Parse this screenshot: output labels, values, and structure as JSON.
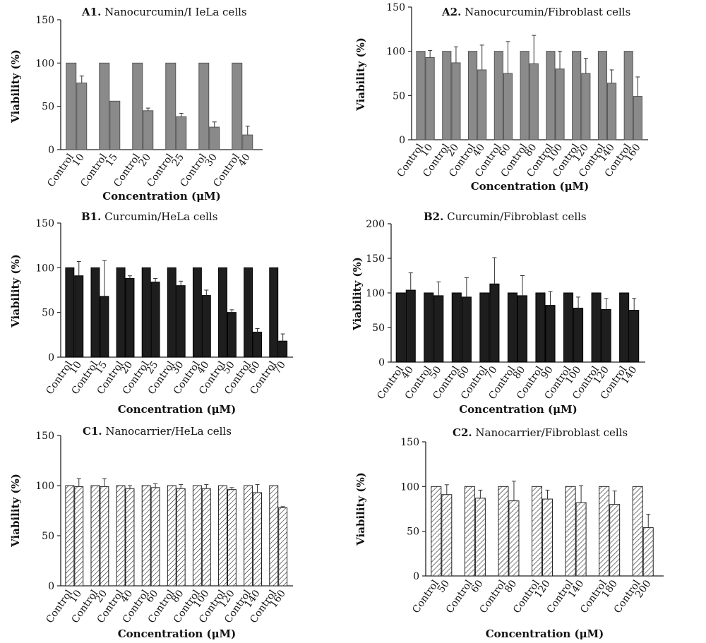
{
  "colors": {
    "gray": "#8a8a8a",
    "black": "#1e1e1e",
    "hatch": "#ffffff",
    "axis": "#222222"
  },
  "chart_data": [
    {
      "id": "A1",
      "type": "bar",
      "style": "gray",
      "title_prefix": "A1.",
      "title_rest": " Nanocurcumin/I IeLa cells",
      "xlabel": "Concentration (μM)",
      "ylabel": "Viability (%)",
      "ylim": [
        0,
        150
      ],
      "yticks": [
        0,
        50,
        100,
        150
      ],
      "groups": [
        {
          "dose": "10",
          "control": 100,
          "control_err": 0,
          "treated": 77,
          "treated_err": 8
        },
        {
          "dose": "15",
          "control": 100,
          "control_err": 0,
          "treated": 56,
          "treated_err": 0
        },
        {
          "dose": "20",
          "control": 100,
          "control_err": 0,
          "treated": 45,
          "treated_err": 3
        },
        {
          "dose": "25",
          "control": 100,
          "control_err": 0,
          "treated": 38,
          "treated_err": 4
        },
        {
          "dose": "30",
          "control": 100,
          "control_err": 0,
          "treated": 26,
          "treated_err": 6
        },
        {
          "dose": "40",
          "control": 100,
          "control_err": 0,
          "treated": 17,
          "treated_err": 10
        }
      ]
    },
    {
      "id": "A2",
      "type": "bar",
      "style": "gray",
      "title_prefix": "A2.",
      "title_rest": " Nanocurcumin/Fibroblast cells",
      "xlabel": "Concentration (μM)",
      "ylabel": "Viability (%)",
      "ylim": [
        0,
        150
      ],
      "yticks": [
        0,
        50,
        100,
        150
      ],
      "groups": [
        {
          "dose": "10",
          "control": 100,
          "control_err": 0,
          "treated": 93,
          "treated_err": 8
        },
        {
          "dose": "20",
          "control": 100,
          "control_err": 0,
          "treated": 87,
          "treated_err": 18
        },
        {
          "dose": "40",
          "control": 100,
          "control_err": 0,
          "treated": 79,
          "treated_err": 28
        },
        {
          "dose": "60",
          "control": 100,
          "control_err": 0,
          "treated": 75,
          "treated_err": 36
        },
        {
          "dose": "80",
          "control": 100,
          "control_err": 0,
          "treated": 86,
          "treated_err": 32
        },
        {
          "dose": "100",
          "control": 100,
          "control_err": 0,
          "treated": 80,
          "treated_err": 20
        },
        {
          "dose": "120",
          "control": 100,
          "control_err": 0,
          "treated": 75,
          "treated_err": 17
        },
        {
          "dose": "140",
          "control": 100,
          "control_err": 0,
          "treated": 64,
          "treated_err": 15
        },
        {
          "dose": "160",
          "control": 100,
          "control_err": 0,
          "treated": 49,
          "treated_err": 22
        }
      ]
    },
    {
      "id": "B1",
      "type": "bar",
      "style": "black",
      "title_prefix": "B1.",
      "title_rest": " Curcumin/HeLa cells",
      "xlabel": "Concentration (μM)",
      "ylabel": "Viability (%)",
      "ylim": [
        0,
        150
      ],
      "yticks": [
        0,
        50,
        100,
        150
      ],
      "groups": [
        {
          "dose": "10",
          "control": 100,
          "control_err": 0,
          "treated": 91,
          "treated_err": 16
        },
        {
          "dose": "15",
          "control": 100,
          "control_err": 0,
          "treated": 68,
          "treated_err": 40
        },
        {
          "dose": "20",
          "control": 100,
          "control_err": 0,
          "treated": 88,
          "treated_err": 3
        },
        {
          "dose": "25",
          "control": 100,
          "control_err": 0,
          "treated": 84,
          "treated_err": 4
        },
        {
          "dose": "30",
          "control": 100,
          "control_err": 0,
          "treated": 80,
          "treated_err": 5
        },
        {
          "dose": "40",
          "control": 100,
          "control_err": 0,
          "treated": 69,
          "treated_err": 6
        },
        {
          "dose": "50",
          "control": 100,
          "control_err": 0,
          "treated": 50,
          "treated_err": 3
        },
        {
          "dose": "60",
          "control": 100,
          "control_err": 0,
          "treated": 28,
          "treated_err": 4
        },
        {
          "dose": "70",
          "control": 100,
          "control_err": 0,
          "treated": 18,
          "treated_err": 8
        }
      ]
    },
    {
      "id": "B2",
      "type": "bar",
      "style": "black",
      "title_prefix": "B2.",
      "title_rest": " Curcumin/Fibroblast cells",
      "xlabel": "Concentration (μM)",
      "ylabel": "Viability (%)",
      "ylim": [
        0,
        200
      ],
      "yticks": [
        0,
        50,
        100,
        150,
        200
      ],
      "groups": [
        {
          "dose": "40",
          "control": 100,
          "control_err": 0,
          "treated": 104,
          "treated_err": 25
        },
        {
          "dose": "50",
          "control": 100,
          "control_err": 0,
          "treated": 96,
          "treated_err": 20
        },
        {
          "dose": "60",
          "control": 100,
          "control_err": 0,
          "treated": 94,
          "treated_err": 28
        },
        {
          "dose": "70",
          "control": 100,
          "control_err": 0,
          "treated": 113,
          "treated_err": 38
        },
        {
          "dose": "80",
          "control": 100,
          "control_err": 0,
          "treated": 96,
          "treated_err": 29
        },
        {
          "dose": "90",
          "control": 100,
          "control_err": 0,
          "treated": 82,
          "treated_err": 20
        },
        {
          "dose": "100",
          "control": 100,
          "control_err": 0,
          "treated": 78,
          "treated_err": 16
        },
        {
          "dose": "120",
          "control": 100,
          "control_err": 0,
          "treated": 76,
          "treated_err": 16
        },
        {
          "dose": "140",
          "control": 100,
          "control_err": 0,
          "treated": 75,
          "treated_err": 17
        }
      ]
    },
    {
      "id": "C1",
      "type": "bar",
      "style": "hatch",
      "title_prefix": "C1.",
      "title_rest": " Nanocarrier/HeLa cells",
      "xlabel": "Concentration (μM)",
      "ylabel": "Viability (%)",
      "ylim": [
        0,
        150
      ],
      "yticks": [
        0,
        50,
        100,
        150
      ],
      "groups": [
        {
          "dose": "10",
          "control": 100,
          "control_err": 0,
          "treated": 99,
          "treated_err": 8
        },
        {
          "dose": "20",
          "control": 100,
          "control_err": 0,
          "treated": 99,
          "treated_err": 8
        },
        {
          "dose": "40",
          "control": 100,
          "control_err": 0,
          "treated": 97,
          "treated_err": 3
        },
        {
          "dose": "60",
          "control": 100,
          "control_err": 0,
          "treated": 98,
          "treated_err": 4
        },
        {
          "dose": "80",
          "control": 100,
          "control_err": 0,
          "treated": 97,
          "treated_err": 4
        },
        {
          "dose": "100",
          "control": 100,
          "control_err": 0,
          "treated": 97,
          "treated_err": 4
        },
        {
          "dose": "120",
          "control": 100,
          "control_err": 0,
          "treated": 96,
          "treated_err": 2
        },
        {
          "dose": "140",
          "control": 100,
          "control_err": 0,
          "treated": 93,
          "treated_err": 8
        },
        {
          "dose": "160",
          "control": 100,
          "control_err": 0,
          "treated": 78,
          "treated_err": 1
        }
      ]
    },
    {
      "id": "C2",
      "type": "bar",
      "style": "hatch",
      "title_prefix": "C2.",
      "title_rest": " Nanocarrier/Fibroblast cells",
      "xlabel": "Concentration (μM)",
      "ylabel": "Viability (%)",
      "ylim": [
        0,
        150
      ],
      "yticks": [
        0,
        50,
        100,
        150
      ],
      "groups": [
        {
          "dose": "50",
          "control": 100,
          "control_err": 0,
          "treated": 91,
          "treated_err": 11
        },
        {
          "dose": "60",
          "control": 100,
          "control_err": 0,
          "treated": 87,
          "treated_err": 9
        },
        {
          "dose": "80",
          "control": 100,
          "control_err": 0,
          "treated": 84,
          "treated_err": 22
        },
        {
          "dose": "120",
          "control": 100,
          "control_err": 0,
          "treated": 86,
          "treated_err": 10
        },
        {
          "dose": "140",
          "control": 100,
          "control_err": 0,
          "treated": 82,
          "treated_err": 19
        },
        {
          "dose": "180",
          "control": 100,
          "control_err": 0,
          "treated": 80,
          "treated_err": 15
        },
        {
          "dose": "200",
          "control": 100,
          "control_err": 0,
          "treated": 54,
          "treated_err": 15
        }
      ]
    }
  ]
}
